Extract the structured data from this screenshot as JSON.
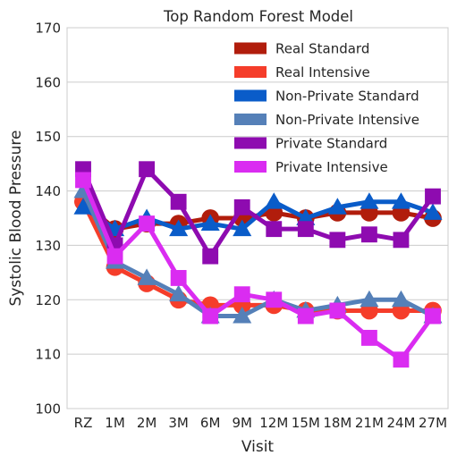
{
  "chart_data": {
    "type": "line",
    "title": "Top Random Forest Model",
    "xlabel": "Visit",
    "ylabel": "Systolic Blood Pressure",
    "categories": [
      "RZ",
      "1M",
      "2M",
      "3M",
      "6M",
      "9M",
      "12M",
      "15M",
      "18M",
      "21M",
      "24M",
      "27M"
    ],
    "ylim": [
      100,
      170
    ],
    "yticks": [
      100,
      110,
      120,
      130,
      140,
      150,
      160,
      170
    ],
    "grid": "horizontal",
    "legend_position": "top-right",
    "series": [
      {
        "name": "Real Standard",
        "color": "#b11d0c",
        "marker": "circle",
        "values": [
          138,
          133,
          134,
          134,
          135,
          135,
          136,
          135,
          136,
          136,
          136,
          135
        ]
      },
      {
        "name": "Real Intensive",
        "color": "#f53d2a",
        "marker": "circle",
        "values": [
          138,
          126,
          123,
          120,
          119,
          119,
          119,
          118,
          118,
          118,
          118,
          118
        ]
      },
      {
        "name": "Non-Private Standard",
        "color": "#0a5cc9",
        "marker": "triangle",
        "values": [
          137,
          133,
          135,
          133,
          134,
          133,
          138,
          135,
          137,
          138,
          138,
          136
        ]
      },
      {
        "name": "Non-Private Intensive",
        "color": "#5580b8",
        "marker": "triangle",
        "values": [
          140,
          127,
          124,
          121,
          117,
          117,
          120,
          118,
          119,
          120,
          120,
          117
        ]
      },
      {
        "name": "Private Standard",
        "color": "#8e0bb0",
        "marker": "square",
        "values": [
          144,
          130,
          144,
          138,
          128,
          137,
          133,
          133,
          131,
          132,
          131,
          139
        ]
      },
      {
        "name": "Private Intensive",
        "color": "#da2cf1",
        "marker": "square",
        "values": [
          142,
          128,
          134,
          124,
          117,
          121,
          120,
          117,
          118,
          113,
          109,
          117
        ]
      }
    ]
  }
}
